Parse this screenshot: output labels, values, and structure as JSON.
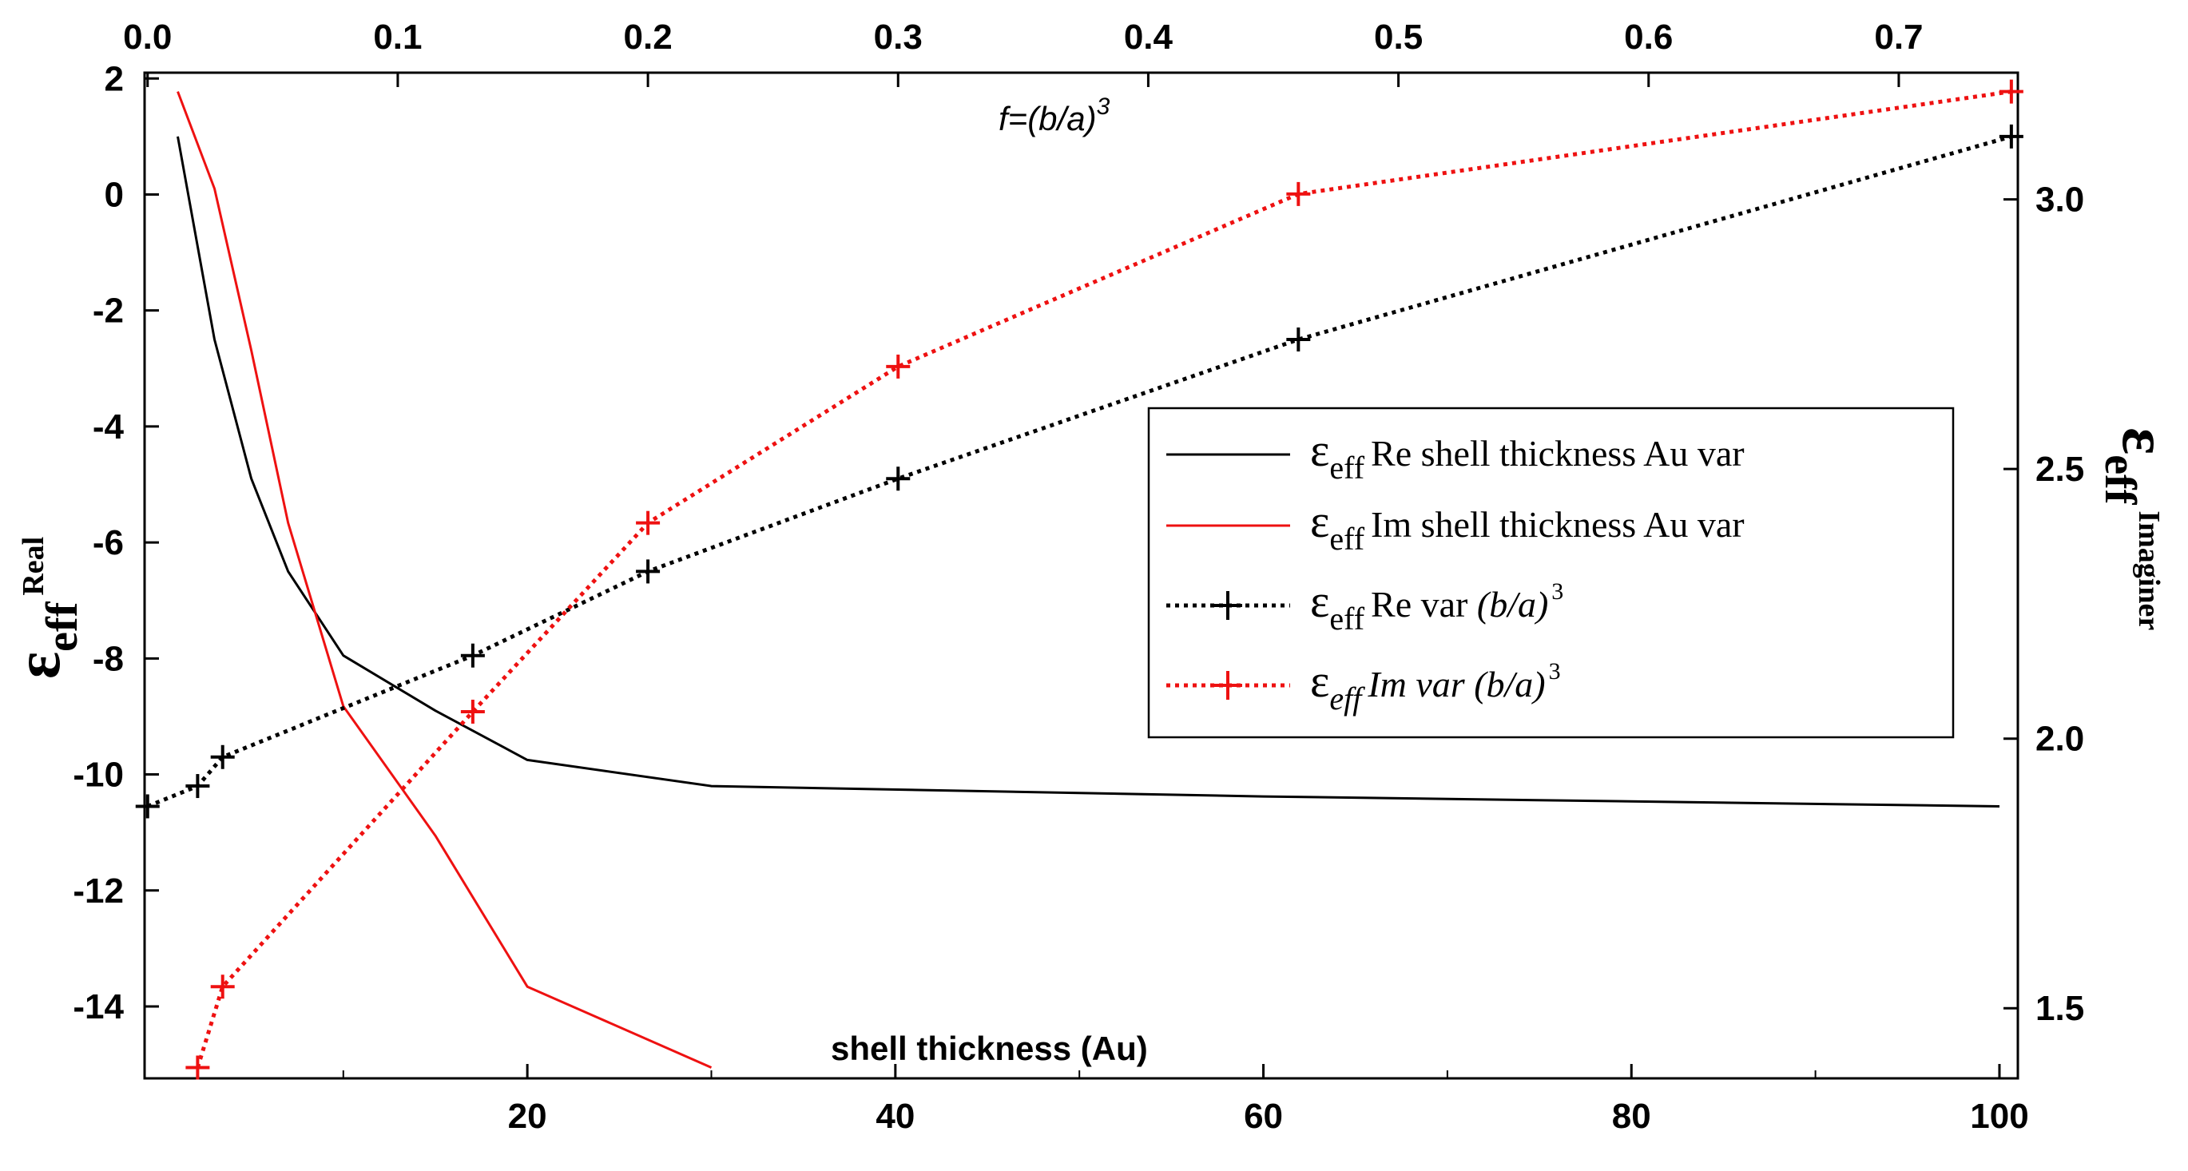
{
  "chart_data": {
    "type": "line",
    "bottom_axis": {
      "label": "shell thickness (Au)",
      "range": [
        -0.8,
        101
      ],
      "ticks": [
        20,
        40,
        60,
        80,
        100
      ],
      "tick_labels": [
        "20",
        "40",
        "60",
        "80",
        "100"
      ]
    },
    "top_axis": {
      "label": "f=(b/a)",
      "label_sup": "3",
      "range": [
        -0.0012,
        0.7476
      ],
      "ticks": [
        0.0,
        0.1,
        0.2,
        0.3,
        0.4,
        0.5,
        0.6,
        0.7
      ],
      "tick_labels": [
        "0.0",
        "0.1",
        "0.2",
        "0.3",
        "0.4",
        "0.5",
        "0.6",
        "0.7"
      ]
    },
    "left_axis": {
      "label_main": "ε",
      "label_sub": "eff",
      "label_sup": "Real",
      "range": [
        -15.24,
        2.1
      ],
      "ticks": [
        2,
        0,
        -2,
        -4,
        -6,
        -8,
        -10,
        -12,
        -14
      ],
      "tick_labels": [
        "2",
        "0",
        "-2",
        "-4",
        "-6",
        "-8",
        "-10",
        "-12",
        "-14"
      ]
    },
    "right_axis": {
      "label_main": "ε",
      "label_sub": "eff",
      "label_sup": "Imaginer",
      "range": [
        1.37,
        3.235
      ],
      "ticks": [
        1.5,
        2.0,
        2.5,
        3.0
      ],
      "tick_labels": [
        "1.5",
        "2.0",
        "2.5",
        "3.0"
      ]
    },
    "series": [
      {
        "name": "eff Re shell thickness Au var",
        "legend_main": "ε",
        "legend_sub": "eff",
        "legend_text": "Re shell thickness Au var",
        "legend_italic": false,
        "legend_sup": "",
        "color": "#000000",
        "style": "solid",
        "marker": "none",
        "x_axis": "bottom",
        "y_axis": "left",
        "points": [
          [
            1,
            1.0
          ],
          [
            3,
            -2.5
          ],
          [
            5,
            -4.9
          ],
          [
            7,
            -6.5
          ],
          [
            10,
            -7.95
          ],
          [
            15,
            -8.9
          ],
          [
            20,
            -9.75
          ],
          [
            30,
            -10.2
          ],
          [
            60,
            -10.38
          ],
          [
            100,
            -10.55
          ]
        ]
      },
      {
        "name": "eff Im shell thickness Au var",
        "legend_main": "ε",
        "legend_sub": "eff",
        "legend_text": "Im shell thickness Au var",
        "legend_italic": false,
        "legend_sup": "",
        "color": "#ee1111",
        "style": "solid",
        "marker": "none",
        "x_axis": "bottom",
        "y_axis": "right",
        "points": [
          [
            1,
            3.2
          ],
          [
            3,
            3.02
          ],
          [
            5,
            2.72
          ],
          [
            7,
            2.4
          ],
          [
            10,
            2.06
          ],
          [
            15,
            1.82
          ],
          [
            20,
            1.54
          ],
          [
            30,
            1.39
          ]
        ]
      },
      {
        "name": "eff Re var (b/a)3",
        "legend_main": "ε",
        "legend_sub": "eff",
        "legend_text": "Re var ",
        "legend_italic_tail": "(b/a)",
        "legend_sup": "3",
        "color": "#000000",
        "style": "dotted",
        "marker": "plus",
        "x_axis": "top",
        "y_axis": "left",
        "points": [
          [
            0.0,
            -10.55
          ],
          [
            0.02,
            -10.2
          ],
          [
            0.03,
            -9.7
          ],
          [
            0.13,
            -7.95
          ],
          [
            0.2,
            -6.5
          ],
          [
            0.3,
            -4.9
          ],
          [
            0.46,
            -2.5
          ],
          [
            0.745,
            1.0
          ]
        ]
      },
      {
        "name": "eff Im var (b/a)3",
        "legend_main": "ε",
        "legend_sub": "eff",
        "legend_text": "Im var ",
        "legend_italic_tail": "(b/a)",
        "legend_sup": "3",
        "legend_italic": true,
        "color": "#ee1111",
        "style": "dotted",
        "marker": "plus",
        "x_axis": "top",
        "y_axis": "right",
        "points": [
          [
            0.02,
            1.39
          ],
          [
            0.03,
            1.54
          ],
          [
            0.13,
            2.05
          ],
          [
            0.2,
            2.4
          ],
          [
            0.3,
            2.69
          ],
          [
            0.46,
            3.01
          ],
          [
            0.745,
            3.2
          ]
        ]
      }
    ],
    "legend_position": "center-right"
  }
}
